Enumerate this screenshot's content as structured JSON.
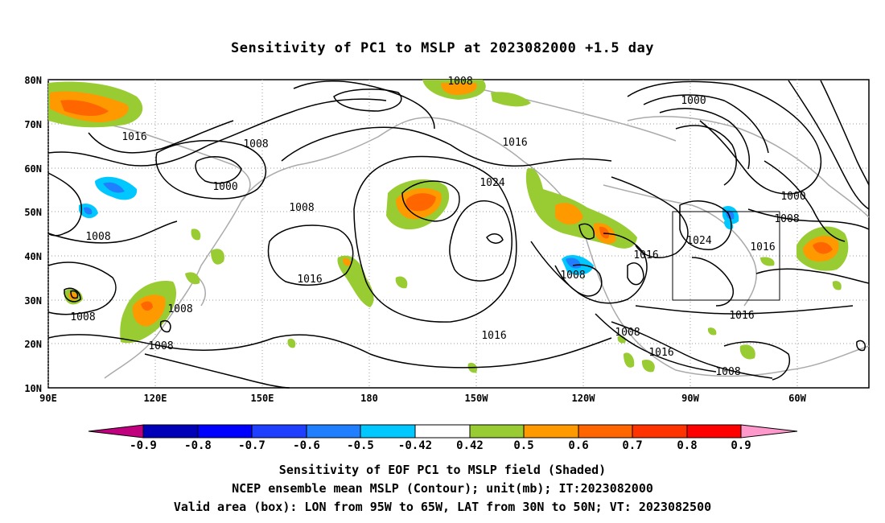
{
  "title": "Sensitivity of PC1 to MSLP at 2023082000 +1.5 day",
  "map": {
    "lat_labels": [
      "80N",
      "70N",
      "60N",
      "50N",
      "40N",
      "30N",
      "20N",
      "10N"
    ],
    "lon_labels": [
      "90E",
      "120E",
      "150E",
      "180",
      "150W",
      "120W",
      "90W",
      "60W"
    ],
    "contour_labels": [
      "1016",
      "1008",
      "1000",
      "1008",
      "1008",
      "1016",
      "1008",
      "1008",
      "1008",
      "1008",
      "1024",
      "1016",
      "1016",
      "1008",
      "1008",
      "1016",
      "1008",
      "1000",
      "1000",
      "1008",
      "1024",
      "1016",
      "1016",
      "1016",
      "1008"
    ],
    "valid_box": {
      "lon_min": -95,
      "lon_max": -65,
      "lat_min": 30,
      "lat_max": 50
    }
  },
  "colorbar": {
    "labels": [
      "-0.9",
      "-0.8",
      "-0.7",
      "-0.6",
      "-0.5",
      "-0.42",
      "0.42",
      "0.5",
      "0.6",
      "0.7",
      "0.8",
      "0.9"
    ],
    "colors": [
      "#c0007f",
      "#0000b8",
      "#0000ff",
      "#1f3fff",
      "#1f7fff",
      "#00c8ff",
      "#ffffff",
      "#99cc33",
      "#ff9900",
      "#ff6600",
      "#ff3300",
      "#ff0000",
      "#ff99cc"
    ]
  },
  "caption": {
    "line1": "Sensitivity of EOF PC1 to MSLP field (Shaded)",
    "line2": "NCEP ensemble mean MSLP (Contour); unit(mb); IT:2023082000",
    "line3": "Valid area (box): LON from 95W to 65W, LAT from 30N to 50N; VT: 2023082500"
  }
}
